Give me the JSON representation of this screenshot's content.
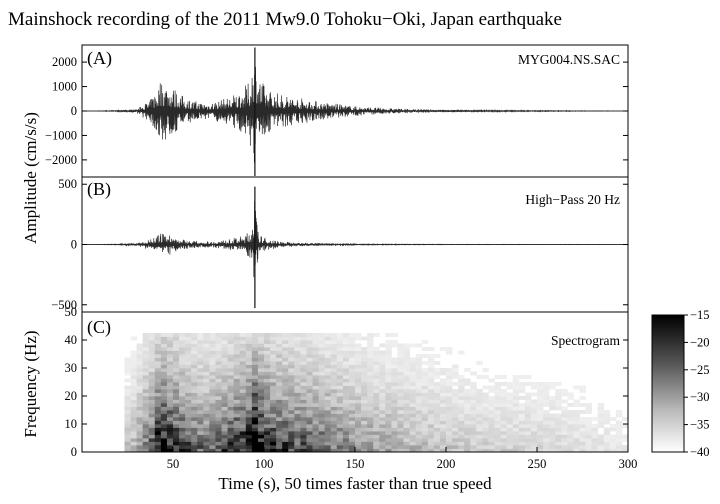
{
  "title": "Mainshock recording of the 2011 Mw9.0 Tohoku−Oki, Japan earthquake",
  "chart_data": [
    {
      "type": "line",
      "panel_label": "(A)",
      "annotation": "MYG004.NS.SAC",
      "ylabel": "Amplitude (cm/s/s)",
      "xlim": [
        0,
        300
      ],
      "ylim": [
        -2700,
        2700
      ],
      "yticks": [
        -2000,
        -1000,
        0,
        1000,
        2000
      ],
      "ytick_labels": [
        "−2000",
        "−1000",
        "0",
        "1000",
        "2000"
      ],
      "envelope": {
        "x": [
          0,
          20,
          30,
          38,
          43,
          46,
          50,
          55,
          60,
          65,
          70,
          80,
          88,
          92,
          95,
          97,
          100,
          105,
          110,
          120,
          130,
          140,
          150,
          160,
          180,
          200,
          220,
          250,
          280,
          300
        ],
        "y": [
          0,
          20,
          80,
          500,
          1300,
          1250,
          1000,
          650,
          450,
          380,
          350,
          550,
          900,
          1200,
          2600,
          1500,
          1100,
          800,
          700,
          550,
          400,
          300,
          200,
          150,
          80,
          50,
          30,
          20,
          10,
          5
        ]
      }
    },
    {
      "type": "line",
      "panel_label": "(B)",
      "annotation": "High−Pass 20 Hz",
      "xlim": [
        0,
        300
      ],
      "ylim": [
        -560,
        560
      ],
      "yticks": [
        -500,
        0,
        500
      ],
      "ytick_labels": [
        "−500",
        "0",
        "500"
      ],
      "envelope": {
        "x": [
          0,
          20,
          30,
          40,
          45,
          50,
          55,
          60,
          70,
          80,
          88,
          93,
          95,
          96,
          97,
          100,
          105,
          110,
          120,
          130,
          140,
          150,
          170,
          200,
          300
        ],
        "y": [
          0,
          3,
          10,
          60,
          110,
          70,
          45,
          30,
          25,
          40,
          70,
          120,
          480,
          200,
          80,
          60,
          40,
          25,
          15,
          10,
          6,
          4,
          3,
          2,
          1
        ]
      }
    },
    {
      "type": "heatmap",
      "panel_label": "(C)",
      "annotation": "Spectrogram",
      "ylabel": "Frequency (Hz)",
      "xlabel": "Time (s), 50 times faster than true speed",
      "xlim": [
        0,
        300
      ],
      "xticks": [
        50,
        100,
        150,
        200,
        250,
        300
      ],
      "ylim": [
        0,
        50
      ],
      "yticks": [
        0,
        10,
        20,
        30,
        40,
        50
      ],
      "colorbar": {
        "range": [
          -40,
          -15
        ],
        "ticks": [
          -15,
          -20,
          -25,
          -30,
          -35,
          -40
        ],
        "tick_labels": [
          "−15",
          "−20",
          "−25",
          "−30",
          "−35",
          "−40"
        ],
        "colormap": "gray_reversed"
      }
    }
  ]
}
